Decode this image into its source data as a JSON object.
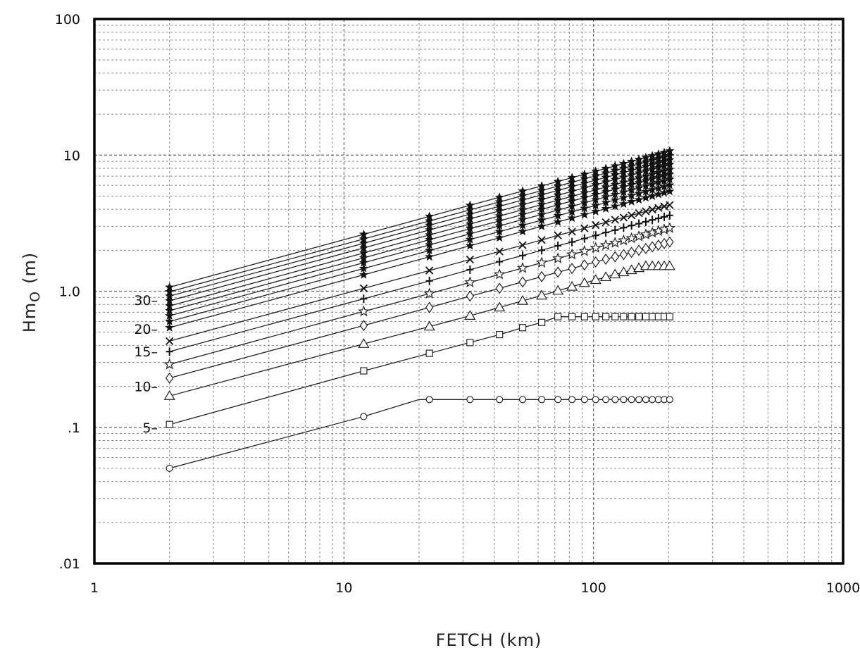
{
  "chart_data": {
    "type": "line",
    "title": "",
    "xlabel": "FETCH (km)",
    "ylabel_main": "Hm",
    "ylabel_sub": "O",
    "ylabel_unit": "(m)",
    "x_scale": "log",
    "y_scale": "log",
    "xlim": [
      1,
      1000
    ],
    "ylim": [
      0.01,
      100
    ],
    "x_ticks": [
      1,
      10,
      100,
      1000
    ],
    "x_tick_labels": [
      "1",
      "10",
      "100",
      "1000"
    ],
    "y_ticks": [
      0.01,
      0.1,
      1,
      10,
      100
    ],
    "y_tick_labels": [
      ".01",
      ".1",
      "1.0",
      "10",
      "100"
    ],
    "grid": true,
    "legend": "inline labels at left of curves",
    "series_labels": [
      {
        "text": "30–",
        "y": 0.86
      },
      {
        "text": "20–",
        "y": 0.53
      },
      {
        "text": "15–",
        "y": 0.36
      },
      {
        "text": "10–",
        "y": 0.2
      },
      {
        "text": "5–",
        "y": 0.1
      }
    ],
    "series": [
      {
        "marker": "circle",
        "x": [
          2,
          12,
          20,
          22,
          32,
          42,
          52,
          62,
          72,
          82,
          92,
          102,
          112,
          122,
          132,
          142,
          152,
          162,
          172,
          182,
          192,
          202
        ],
        "y": [
          0.05,
          0.12,
          0.16,
          0.16,
          0.16,
          0.16,
          0.16,
          0.16,
          0.16,
          0.16,
          0.16,
          0.16,
          0.16,
          0.16,
          0.16,
          0.16,
          0.16,
          0.16,
          0.16,
          0.16,
          0.16,
          0.16
        ]
      },
      {
        "marker": "square",
        "x": [
          2,
          12,
          22,
          32,
          42,
          52,
          62,
          72,
          82,
          92,
          102,
          112,
          122,
          132,
          142,
          152,
          162,
          172,
          182,
          192,
          202
        ],
        "y": [
          0.105,
          0.26,
          0.35,
          0.42,
          0.48,
          0.54,
          0.59,
          0.65,
          0.65,
          0.65,
          0.65,
          0.65,
          0.65,
          0.65,
          0.65,
          0.65,
          0.65,
          0.65,
          0.65,
          0.65,
          0.65
        ]
      },
      {
        "marker": "triangle",
        "x": [
          2,
          12,
          22,
          32,
          42,
          52,
          62,
          72,
          82,
          92,
          102,
          112,
          122,
          132,
          142,
          152,
          162,
          172,
          182,
          192,
          202
        ],
        "y": [
          0.17,
          0.41,
          0.55,
          0.66,
          0.76,
          0.85,
          0.93,
          1.01,
          1.08,
          1.15,
          1.21,
          1.27,
          1.33,
          1.38,
          1.43,
          1.48,
          1.53,
          1.53,
          1.53,
          1.53,
          1.53
        ]
      },
      {
        "marker": "diamond",
        "x": [
          2,
          12,
          22,
          32,
          42,
          52,
          62,
          72,
          82,
          92,
          102,
          112,
          122,
          132,
          142,
          152,
          162,
          172,
          182,
          192,
          202
        ],
        "y": [
          0.23,
          0.56,
          0.76,
          0.92,
          1.05,
          1.17,
          1.28,
          1.38,
          1.47,
          1.56,
          1.64,
          1.72,
          1.79,
          1.86,
          1.93,
          2.0,
          2.06,
          2.12,
          2.18,
          2.24,
          2.3
        ]
      },
      {
        "marker": "star",
        "x": [
          2,
          12,
          22,
          32,
          42,
          52,
          62,
          72,
          82,
          92,
          102,
          112,
          122,
          132,
          142,
          152,
          162,
          172,
          182,
          192,
          202
        ],
        "y": [
          0.29,
          0.71,
          0.96,
          1.16,
          1.33,
          1.48,
          1.62,
          1.74,
          1.86,
          1.97,
          2.08,
          2.18,
          2.27,
          2.36,
          2.45,
          2.53,
          2.61,
          2.69,
          2.77,
          2.84,
          2.91
        ]
      },
      {
        "marker": "plus",
        "x": [
          2,
          12,
          22,
          32,
          42,
          52,
          62,
          72,
          82,
          92,
          102,
          112,
          122,
          132,
          142,
          152,
          162,
          172,
          182,
          192,
          202
        ],
        "y": [
          0.36,
          0.88,
          1.19,
          1.44,
          1.65,
          1.83,
          2.0,
          2.16,
          2.3,
          2.44,
          2.57,
          2.7,
          2.81,
          2.93,
          3.04,
          3.14,
          3.24,
          3.34,
          3.43,
          3.52,
          3.61
        ]
      },
      {
        "marker": "x",
        "x": [
          2,
          12,
          22,
          32,
          42,
          52,
          62,
          72,
          82,
          92,
          102,
          112,
          122,
          132,
          142,
          152,
          162,
          172,
          182,
          192,
          202
        ],
        "y": [
          0.43,
          1.05,
          1.42,
          1.71,
          1.96,
          2.18,
          2.38,
          2.57,
          2.74,
          2.9,
          3.06,
          3.21,
          3.35,
          3.48,
          3.61,
          3.74,
          3.86,
          3.98,
          4.09,
          4.2,
          4.3
        ]
      },
      {
        "marker": "filled",
        "x": [
          2,
          12,
          22,
          32,
          42,
          52,
          62,
          72,
          82,
          92,
          102,
          112,
          122,
          132,
          142,
          152,
          162,
          172,
          182,
          192,
          202
        ],
        "y": [
          0.54,
          1.32,
          1.79,
          2.16,
          2.47,
          2.75,
          3.0,
          3.23,
          3.45,
          3.65,
          3.85,
          4.04,
          4.21,
          4.38,
          4.55,
          4.7,
          4.86,
          5.0,
          5.15,
          5.29,
          5.42
        ]
      },
      {
        "marker": "filled",
        "x": [
          2,
          12,
          22,
          32,
          42,
          52,
          62,
          72,
          82,
          92,
          102,
          112,
          122,
          132,
          142,
          152,
          162,
          172,
          182,
          192,
          202
        ],
        "y": [
          0.6,
          1.47,
          1.99,
          2.4,
          2.74,
          3.05,
          3.33,
          3.59,
          3.83,
          4.06,
          4.27,
          4.48,
          4.68,
          4.87,
          5.05,
          5.22,
          5.39,
          5.56,
          5.72,
          5.87,
          6.02
        ]
      },
      {
        "marker": "filled",
        "x": [
          2,
          12,
          22,
          32,
          42,
          52,
          62,
          72,
          82,
          92,
          102,
          112,
          122,
          132,
          142,
          152,
          162,
          172,
          182,
          192,
          202
        ],
        "y": [
          0.66,
          1.62,
          2.19,
          2.64,
          3.02,
          3.36,
          3.66,
          3.95,
          4.21,
          4.46,
          4.7,
          4.93,
          5.14,
          5.35,
          5.55,
          5.74,
          5.93,
          6.11,
          6.29,
          6.46,
          6.63
        ]
      },
      {
        "marker": "filled",
        "x": [
          2,
          12,
          22,
          32,
          42,
          52,
          62,
          72,
          82,
          92,
          102,
          112,
          122,
          132,
          142,
          152,
          162,
          172,
          182,
          192,
          202
        ],
        "y": [
          0.72,
          1.76,
          2.39,
          2.88,
          3.29,
          3.66,
          4.0,
          4.31,
          4.6,
          4.87,
          5.13,
          5.37,
          5.61,
          5.84,
          6.06,
          6.27,
          6.47,
          6.67,
          6.86,
          7.05,
          7.23
        ]
      },
      {
        "marker": "filled",
        "x": [
          2,
          12,
          22,
          32,
          42,
          52,
          62,
          72,
          82,
          92,
          102,
          112,
          122,
          132,
          142,
          152,
          162,
          172,
          182,
          192,
          202
        ],
        "y": [
          0.78,
          1.91,
          2.59,
          3.12,
          3.57,
          3.97,
          4.33,
          4.67,
          4.98,
          5.28,
          5.56,
          5.82,
          6.08,
          6.32,
          6.56,
          6.79,
          7.01,
          7.22,
          7.43,
          7.63,
          7.83
        ]
      },
      {
        "marker": "filled",
        "x": [
          2,
          12,
          22,
          32,
          42,
          52,
          62,
          72,
          82,
          92,
          102,
          112,
          122,
          132,
          142,
          152,
          162,
          172,
          182,
          192,
          202
        ],
        "y": [
          0.85,
          2.08,
          2.82,
          3.4,
          3.89,
          4.32,
          4.72,
          5.08,
          5.42,
          5.74,
          6.05,
          6.34,
          6.62,
          6.88,
          7.14,
          7.39,
          7.63,
          7.86,
          8.09,
          8.31,
          8.52
        ]
      },
      {
        "marker": "filled",
        "x": [
          2,
          12,
          22,
          32,
          42,
          52,
          62,
          72,
          82,
          92,
          102,
          112,
          122,
          132,
          142,
          152,
          162,
          172,
          182,
          192,
          202
        ],
        "y": [
          0.92,
          2.25,
          3.05,
          3.68,
          4.21,
          4.68,
          5.11,
          5.5,
          5.87,
          6.22,
          6.55,
          6.86,
          7.16,
          7.45,
          7.73,
          8.0,
          8.26,
          8.51,
          8.75,
          8.99,
          9.22
        ]
      },
      {
        "marker": "filled",
        "x": [
          2,
          12,
          22,
          32,
          42,
          52,
          62,
          72,
          82,
          92,
          102,
          112,
          122,
          132,
          142,
          152,
          162,
          172,
          182,
          192,
          202
        ],
        "y": [
          0.99,
          2.42,
          3.28,
          3.96,
          4.53,
          5.03,
          5.49,
          5.92,
          6.31,
          6.69,
          7.04,
          7.38,
          7.7,
          8.01,
          8.31,
          8.6,
          8.88,
          9.15,
          9.41,
          9.67,
          9.92
        ]
      },
      {
        "marker": "filled",
        "x": [
          2,
          12,
          22,
          32,
          42,
          52,
          62,
          72,
          82,
          92,
          102,
          112,
          122,
          132,
          142,
          152,
          162,
          172,
          182,
          192,
          202
        ],
        "y": [
          1.07,
          2.62,
          3.55,
          4.28,
          4.9,
          5.44,
          5.94,
          6.4,
          6.83,
          7.23,
          7.62,
          7.98,
          8.33,
          8.66,
          8.99,
          9.3,
          9.6,
          9.9,
          10.18,
          10.46,
          10.73
        ]
      }
    ]
  }
}
